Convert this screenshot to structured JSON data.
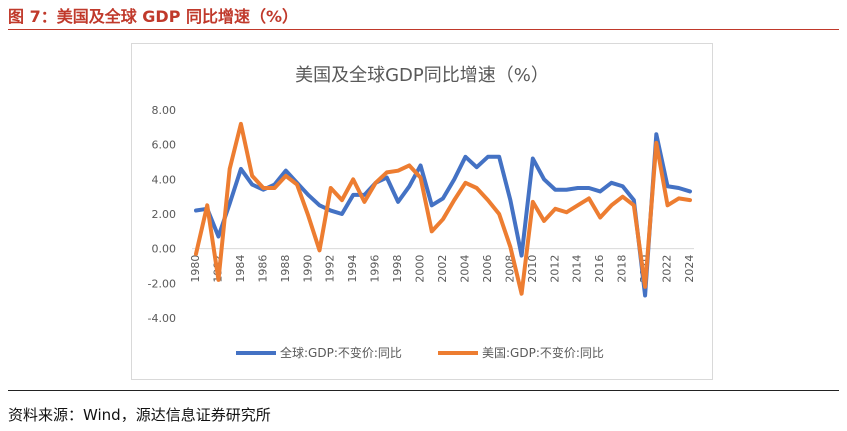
{
  "figure": {
    "caption": "图 7：美国及全球 GDP 同比增速（%）",
    "source": "资料来源：Wind，源达信息证券研究所"
  },
  "colors": {
    "caption": "#c0392b",
    "global_series": "#4472c4",
    "us_series": "#ed7d31",
    "axis_text": "#595959",
    "zero_line": "#d9d9d9"
  },
  "chart_data": {
    "type": "line",
    "title": "美国及全球GDP同比增速（%）",
    "xlabel": "",
    "ylabel": "",
    "ylim": [
      -4,
      8
    ],
    "yticks": [
      8,
      6,
      4,
      2,
      0,
      -2,
      -4
    ],
    "ytick_labels": [
      "8.00",
      "6.00",
      "4.00",
      "2.00",
      "0.00",
      "-2.00",
      "-4.00"
    ],
    "grid": false,
    "legend_position": "bottom",
    "x": [
      1980,
      1981,
      1982,
      1983,
      1984,
      1985,
      1986,
      1987,
      1988,
      1989,
      1990,
      1991,
      1992,
      1993,
      1994,
      1995,
      1996,
      1997,
      1998,
      1999,
      2000,
      2001,
      2002,
      2003,
      2004,
      2005,
      2006,
      2007,
      2008,
      2009,
      2010,
      2011,
      2012,
      2013,
      2014,
      2015,
      2016,
      2017,
      2018,
      2019,
      2020,
      2021,
      2022,
      2023,
      2024
    ],
    "xtick_labels": [
      "1980",
      "1982",
      "1984",
      "1986",
      "1988",
      "1990",
      "1992",
      "1994",
      "1996",
      "1998",
      "2000",
      "2002",
      "2004",
      "2006",
      "2008",
      "2010",
      "2012",
      "2014",
      "2016",
      "2018",
      "2020",
      "2022",
      "2024"
    ],
    "series": [
      {
        "name": "全球:GDP:不变价:同比",
        "color": "#4472c4",
        "values": [
          2.2,
          2.3,
          0.7,
          2.6,
          4.6,
          3.7,
          3.4,
          3.7,
          4.5,
          3.8,
          3.1,
          2.5,
          2.2,
          2.0,
          3.1,
          3.1,
          3.8,
          4.1,
          2.7,
          3.6,
          4.8,
          2.5,
          2.9,
          4.0,
          5.3,
          4.7,
          5.3,
          5.3,
          2.8,
          -0.4,
          5.2,
          4.0,
          3.4,
          3.4,
          3.5,
          3.5,
          3.3,
          3.8,
          3.6,
          2.8,
          -2.7,
          6.6,
          3.6,
          3.5,
          3.3
        ]
      },
      {
        "name": "美国:GDP:不变价:同比",
        "color": "#ed7d31",
        "values": [
          -0.3,
          2.5,
          -1.8,
          4.6,
          7.2,
          4.2,
          3.5,
          3.5,
          4.2,
          3.7,
          1.9,
          -0.1,
          3.5,
          2.8,
          4.0,
          2.7,
          3.8,
          4.4,
          4.5,
          4.8,
          4.1,
          1.0,
          1.7,
          2.8,
          3.8,
          3.5,
          2.8,
          2.0,
          0.1,
          -2.6,
          2.7,
          1.6,
          2.3,
          2.1,
          2.5,
          2.9,
          1.8,
          2.5,
          3.0,
          2.5,
          -2.2,
          6.1,
          2.5,
          2.9,
          2.8
        ]
      }
    ]
  }
}
